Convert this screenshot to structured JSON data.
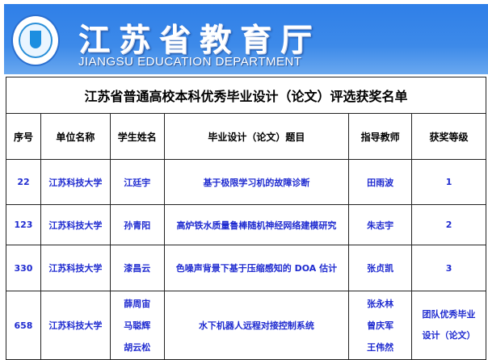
{
  "header": {
    "title_cn": "江苏省教育厅",
    "title_en": "JIANGSU EDUCATION DEPARTMENT",
    "logo": "jiangsu-education-logo",
    "color": "#2f7fe8"
  },
  "table": {
    "title": "江苏省普通高校本科优秀毕业设计（论文）评选获奖名单",
    "columns": [
      "序号",
      "单位名称",
      "学生姓名",
      "毕业设计（论文）题目",
      "指导教师",
      "获奖等级"
    ],
    "rows": [
      {
        "no": "22",
        "unit": "江苏科技大学",
        "students": [
          "江廷宇"
        ],
        "topic": "基于极限学习机的故障诊断",
        "advisors": [
          "田雨波"
        ],
        "award": "1"
      },
      {
        "no": "123",
        "unit": "江苏科技大学",
        "students": [
          "孙青阳"
        ],
        "topic": "高炉铁水质量鲁棒随机神经网络建模研究",
        "advisors": [
          "朱志宇"
        ],
        "award": "2"
      },
      {
        "no": "330",
        "unit": "江苏科技大学",
        "students": [
          "漆昌云"
        ],
        "topic": "色噪声背景下基于压缩感知的 DOA 估计",
        "advisors": [
          "张贞凯"
        ],
        "award": "3"
      },
      {
        "no": "658",
        "unit": "江苏科技大学",
        "students": [
          "薛周宙",
          "马聪辉",
          "胡云松"
        ],
        "topic": "水下机器人远程对接控制系统",
        "advisors": [
          "张永林",
          "曾庆军",
          "王伟然"
        ],
        "award": "团队优秀毕业设计（论文）"
      }
    ],
    "text_color": "#1f2bd0"
  }
}
